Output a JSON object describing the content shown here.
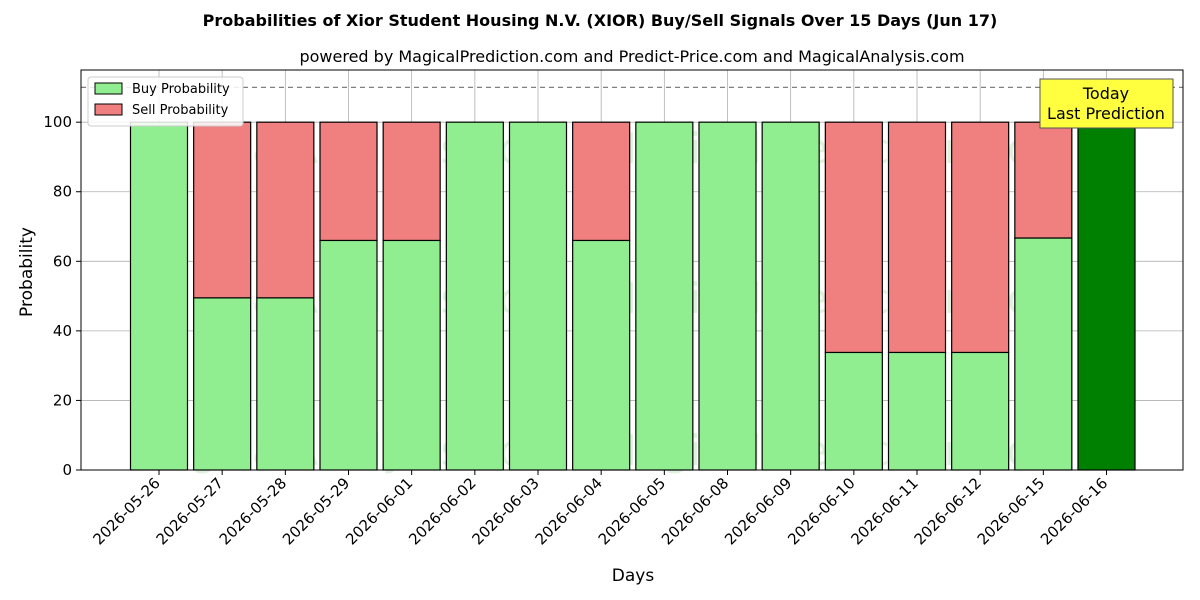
{
  "chart_data": {
    "type": "bar",
    "title": "Probabilities of Xior Student Housing N.V. (XIOR) Buy/Sell Signals Over 15 Days (Jun 17)",
    "subtitle": "powered by MagicalPrediction.com and Predict-Price.com and MagicalAnalysis.com",
    "xlabel": "Days",
    "ylabel": "Probability",
    "ylim": [
      0,
      115
    ],
    "yticks": [
      0,
      20,
      40,
      60,
      80,
      100
    ],
    "reference_line": 110,
    "grid": true,
    "legend_position": "top-left",
    "categories": [
      "2026-05-26",
      "2026-05-27",
      "2026-05-28",
      "2026-05-29",
      "2026-06-01",
      "2026-06-02",
      "2026-06-03",
      "2026-06-04",
      "2026-06-05",
      "2026-06-08",
      "2026-06-09",
      "2026-06-10",
      "2026-06-11",
      "2026-06-12",
      "2026-06-15",
      "2026-06-16"
    ],
    "series": [
      {
        "name": "Buy Probability",
        "color": "#90ee90",
        "values": [
          100,
          49.5,
          49.5,
          66,
          66,
          100,
          100,
          66,
          100,
          100,
          100,
          33.8,
          33.8,
          33.8,
          66.7,
          100
        ]
      },
      {
        "name": "Sell Probability",
        "color": "#f08080",
        "values": [
          0,
          50.5,
          50.5,
          34,
          34,
          0,
          0,
          34,
          0,
          0,
          0,
          66.2,
          66.2,
          66.2,
          33.3,
          0
        ]
      }
    ],
    "highlight": {
      "index": 15,
      "color": "#008000",
      "annotation": [
        "Today",
        "Last Prediction"
      ]
    },
    "watermarks": [
      "MagicalAnalysis.com",
      "MagicalPrediction.com"
    ]
  }
}
